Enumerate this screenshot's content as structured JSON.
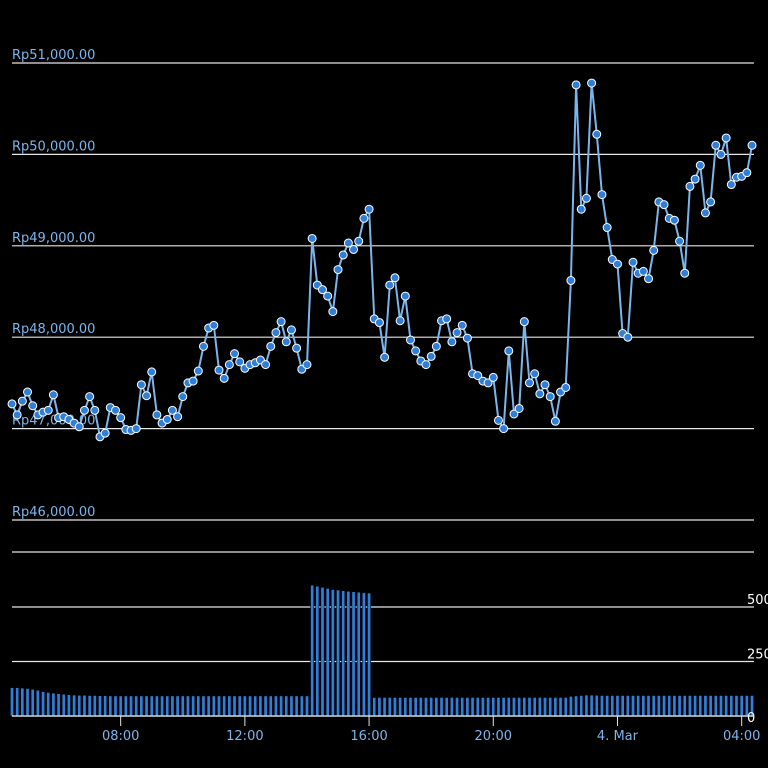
{
  "chart_data": [
    {
      "type": "line",
      "pane": "price",
      "y_ticks": [
        46000,
        47000,
        48000,
        49000,
        50000,
        51000
      ],
      "y_tick_labels": [
        "Rp46,000.00",
        "Rp47,000.00",
        "Rp48,000.00",
        "Rp49,000.00",
        "Rp50,000.00",
        "Rp51,000.00"
      ],
      "ylim": [
        46000,
        51000
      ],
      "grid": true,
      "x_start": "3 Mar 04:30",
      "x_interval_minutes": 10,
      "color": "#7cb5ec",
      "marker": "circle",
      "values": [
        47270,
        47150,
        47300,
        47400,
        47250,
        47150,
        47180,
        47200,
        47370,
        47120,
        47130,
        47100,
        47060,
        47020,
        47200,
        47350,
        47200,
        46910,
        46950,
        47230,
        47200,
        47120,
        46990,
        46980,
        47000,
        47480,
        47360,
        47620,
        47150,
        47060,
        47100,
        47200,
        47130,
        47350,
        47500,
        47520,
        47630,
        47900,
        48100,
        48130,
        47640,
        47550,
        47700,
        47820,
        47730,
        47660,
        47700,
        47720,
        47750,
        47700,
        47900,
        48050,
        48170,
        47950,
        48080,
        47880,
        47650,
        47700,
        49080,
        48570,
        48520,
        48450,
        48280,
        48740,
        48900,
        49030,
        48960,
        49050,
        49300,
        49400,
        48200,
        48160,
        47780,
        48570,
        48650,
        48180,
        48450,
        47970,
        47850,
        47740,
        47700,
        47790,
        47900,
        48180,
        48200,
        47950,
        48050,
        48130,
        47990,
        47600,
        47580,
        47520,
        47500,
        47560,
        47090,
        47000,
        47850,
        47160,
        47220,
        48170,
        47500,
        47600,
        47380,
        47480,
        47350,
        47080,
        47400,
        47450,
        48620,
        50760,
        49400,
        49520,
        50780,
        50220,
        49560,
        49200,
        48850,
        48800,
        48040,
        48000,
        48820,
        48700,
        48720,
        48640,
        48950,
        49480,
        49450,
        49300,
        49280,
        49050,
        48700,
        49650,
        49730,
        49880,
        49360,
        49480,
        50100,
        50000,
        50180,
        49670,
        49750,
        49760,
        49800,
        50100
      ]
    },
    {
      "type": "bar",
      "pane": "volume",
      "y_ticks": [
        0,
        250,
        500
      ],
      "y_tick_labels": [
        "0",
        "250",
        "500"
      ],
      "ylim": [
        0,
        750
      ],
      "color": "#2f7ed8",
      "x_start": "3 Mar 04:30",
      "x_interval_minutes": 10,
      "values": [
        130,
        130,
        128,
        126,
        122,
        118,
        112,
        108,
        105,
        102,
        100,
        98,
        96,
        95,
        95,
        94,
        94,
        93,
        93,
        92,
        92,
        92,
        92,
        92,
        92,
        92,
        92,
        92,
        92,
        92,
        92,
        92,
        92,
        92,
        92,
        92,
        92,
        92,
        92,
        92,
        92,
        92,
        92,
        92,
        92,
        92,
        92,
        92,
        92,
        92,
        92,
        92,
        92,
        92,
        92,
        92,
        92,
        92,
        600,
        595,
        590,
        585,
        580,
        578,
        575,
        572,
        570,
        568,
        566,
        564,
        85,
        85,
        85,
        85,
        85,
        85,
        85,
        85,
        85,
        85,
        85,
        85,
        85,
        85,
        85,
        85,
        85,
        85,
        85,
        85,
        85,
        85,
        85,
        85,
        85,
        85,
        85,
        85,
        85,
        85,
        85,
        85,
        85,
        85,
        85,
        85,
        85,
        85,
        90,
        92,
        94,
        96,
        96,
        95,
        94,
        94,
        94,
        94,
        94,
        94,
        94,
        94,
        94,
        94,
        94,
        94,
        94,
        94,
        94,
        94,
        94,
        94,
        94,
        94,
        94,
        94,
        94,
        94,
        94,
        94,
        94,
        94,
        94,
        94
      ]
    }
  ],
  "x_axis": {
    "ticks": [
      "08:00",
      "12:00",
      "16:00",
      "20:00",
      "4. Mar",
      "04:00"
    ],
    "tick_hours_from_start": [
      3.5,
      7.5,
      11.5,
      15.5,
      19.5,
      23.5
    ]
  }
}
